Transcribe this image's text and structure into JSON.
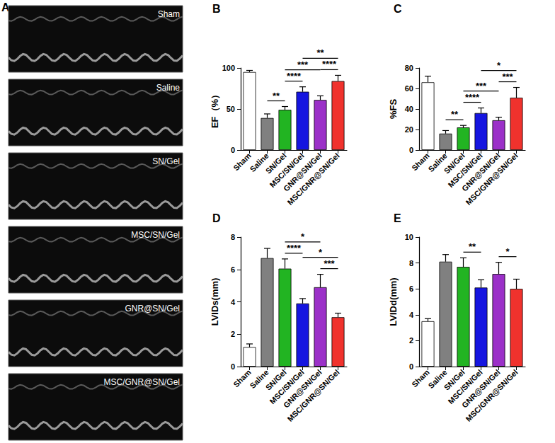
{
  "panel_a": {
    "title": "A",
    "images": [
      "Sham",
      "Saline",
      "SN/Gel",
      "MSC/SN/Gel",
      "GNR@SN/Gel",
      "MSC/GNR@SN/Gel"
    ]
  },
  "chart_data": [
    {
      "type": "bar",
      "title": "B",
      "y_label": "EF（%）",
      "categories": [
        "Sham",
        "Saline",
        "SN/Gel",
        "MSC/SN/Gel",
        "GNR@SN/Gel",
        "MSC/GNR@SN/Gel"
      ],
      "values": [
        95,
        39,
        49,
        71,
        61,
        84
      ],
      "errors": [
        2,
        5,
        4,
        6,
        5,
        7
      ],
      "colors": [
        "#ffffff",
        "#808080",
        "#22b422",
        "#1515e0",
        "#9b30c8",
        "#f0322d"
      ],
      "ylim": [
        0,
        100
      ],
      "yticks": [
        0,
        50,
        100
      ],
      "grid": false,
      "annotations": [
        {
          "from": "Saline",
          "to": "SN/Gel",
          "label": "**"
        },
        {
          "from": "SN/Gel",
          "to": "MSC/SN/Gel",
          "label": "****"
        },
        {
          "from": "SN/Gel",
          "to": "GNR@SN/Gel",
          "label": "***"
        },
        {
          "from": "GNR@SN/Gel",
          "to": "MSC/GNR@SN/Gel",
          "label": "****"
        },
        {
          "from": "MSC/SN/Gel",
          "to": "MSC/GNR@SN/Gel",
          "label": "**"
        }
      ]
    },
    {
      "type": "bar",
      "title": "C",
      "y_label": "%FS",
      "categories": [
        "Sham",
        "Saline",
        "SN/Gel",
        "MSC/SN/Gel",
        "GNR@SN/Gel",
        "MSC/GNR@SN/Gel"
      ],
      "values": [
        66,
        16,
        22,
        36,
        29,
        51
      ],
      "errors": [
        6,
        3,
        2,
        5,
        3,
        10
      ],
      "colors": [
        "#ffffff",
        "#808080",
        "#22b422",
        "#1515e0",
        "#9b30c8",
        "#f0322d"
      ],
      "ylim": [
        0,
        80
      ],
      "yticks": [
        0,
        20,
        40,
        60,
        80
      ],
      "grid": false,
      "annotations": [
        {
          "from": "Saline",
          "to": "SN/Gel",
          "label": "**"
        },
        {
          "from": "SN/Gel",
          "to": "MSC/SN/Gel",
          "label": "****"
        },
        {
          "from": "SN/Gel",
          "to": "GNR@SN/Gel",
          "label": "***"
        },
        {
          "from": "GNR@SN/Gel",
          "to": "MSC/GNR@SN/Gel",
          "label": "***"
        },
        {
          "from": "MSC/SN/Gel",
          "to": "MSC/GNR@SN/Gel",
          "label": "*"
        }
      ]
    },
    {
      "type": "bar",
      "title": "D",
      "y_label": "LVIDs(mm)",
      "categories": [
        "Sham",
        "Saline",
        "SN/Gel",
        "MSC/SN/Gel",
        "GNR@SN/Gel",
        "MSC/GNR@SN/Gel"
      ],
      "values": [
        1.2,
        6.7,
        6.05,
        3.9,
        4.9,
        3.05
      ],
      "errors": [
        0.2,
        0.6,
        0.6,
        0.3,
        0.8,
        0.25
      ],
      "colors": [
        "#ffffff",
        "#808080",
        "#22b422",
        "#1515e0",
        "#9b30c8",
        "#f0322d"
      ],
      "ylim": [
        0,
        8
      ],
      "yticks": [
        0,
        2,
        4,
        6,
        8
      ],
      "grid": false,
      "annotations": [
        {
          "from": "SN/Gel",
          "to": "MSC/SN/Gel",
          "label": "****"
        },
        {
          "from": "GNR@SN/Gel",
          "to": "MSC/GNR@SN/Gel",
          "label": "***"
        },
        {
          "from": "MSC/SN/Gel",
          "to": "MSC/GNR@SN/Gel",
          "label": "*"
        },
        {
          "from": "SN/Gel",
          "to": "GNR@SN/Gel",
          "label": "*"
        }
      ]
    },
    {
      "type": "bar",
      "title": "E",
      "y_label": "LVIDd(mm)",
      "categories": [
        "Sham",
        "Saline",
        "SN/Gel",
        "MSC/SN/Gel",
        "GNR@SN/Gel",
        "MSC/GNR@SN/Gel"
      ],
      "values": [
        3.5,
        8.1,
        7.7,
        6.1,
        7.15,
        6.0
      ],
      "errors": [
        0.2,
        0.55,
        0.7,
        0.6,
        0.9,
        0.75
      ],
      "colors": [
        "#ffffff",
        "#808080",
        "#22b422",
        "#1515e0",
        "#9b30c8",
        "#f0322d"
      ],
      "ylim": [
        0,
        10
      ],
      "yticks": [
        0,
        2,
        4,
        6,
        8,
        10
      ],
      "grid": false,
      "annotations": [
        {
          "from": "SN/Gel",
          "to": "MSC/SN/Gel",
          "label": "**"
        },
        {
          "from": "GNR@SN/Gel",
          "to": "MSC/GNR@SN/Gel",
          "label": "*"
        }
      ]
    }
  ]
}
